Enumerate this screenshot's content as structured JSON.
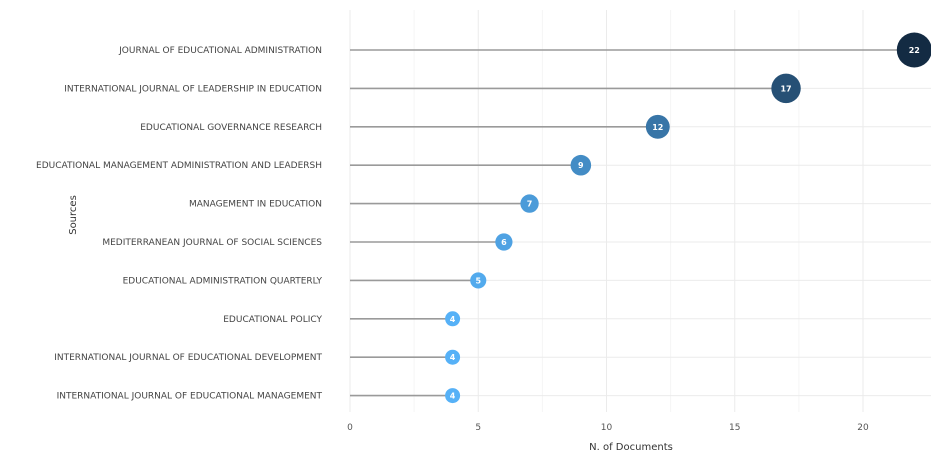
{
  "chart_data": {
    "type": "lollipop",
    "title": "",
    "xlabel": "N. of Documents",
    "ylabel": "Sources",
    "xlim": [
      0,
      22
    ],
    "xticks": [
      0,
      5,
      10,
      15,
      20
    ],
    "grid": true,
    "categories": [
      "JOURNAL OF EDUCATIONAL ADMINISTRATION",
      "INTERNATIONAL JOURNAL OF LEADERSHIP IN EDUCATION",
      "EDUCATIONAL GOVERNANCE RESEARCH",
      "EDUCATIONAL MANAGEMENT ADMINISTRATION AND LEADERSH",
      "MANAGEMENT IN EDUCATION",
      "MEDITERRANEAN JOURNAL OF SOCIAL SCIENCES",
      "EDUCATIONAL ADMINISTRATION QUARTERLY",
      "EDUCATIONAL POLICY",
      "INTERNATIONAL JOURNAL OF EDUCATIONAL DEVELOPMENT",
      "INTERNATIONAL JOURNAL OF EDUCATIONAL MANAGEMENT"
    ],
    "values": [
      22,
      17,
      12,
      9,
      7,
      6,
      5,
      4,
      4,
      4
    ],
    "color_scale": {
      "low": "#56B1F7",
      "high": "#132B43"
    }
  }
}
